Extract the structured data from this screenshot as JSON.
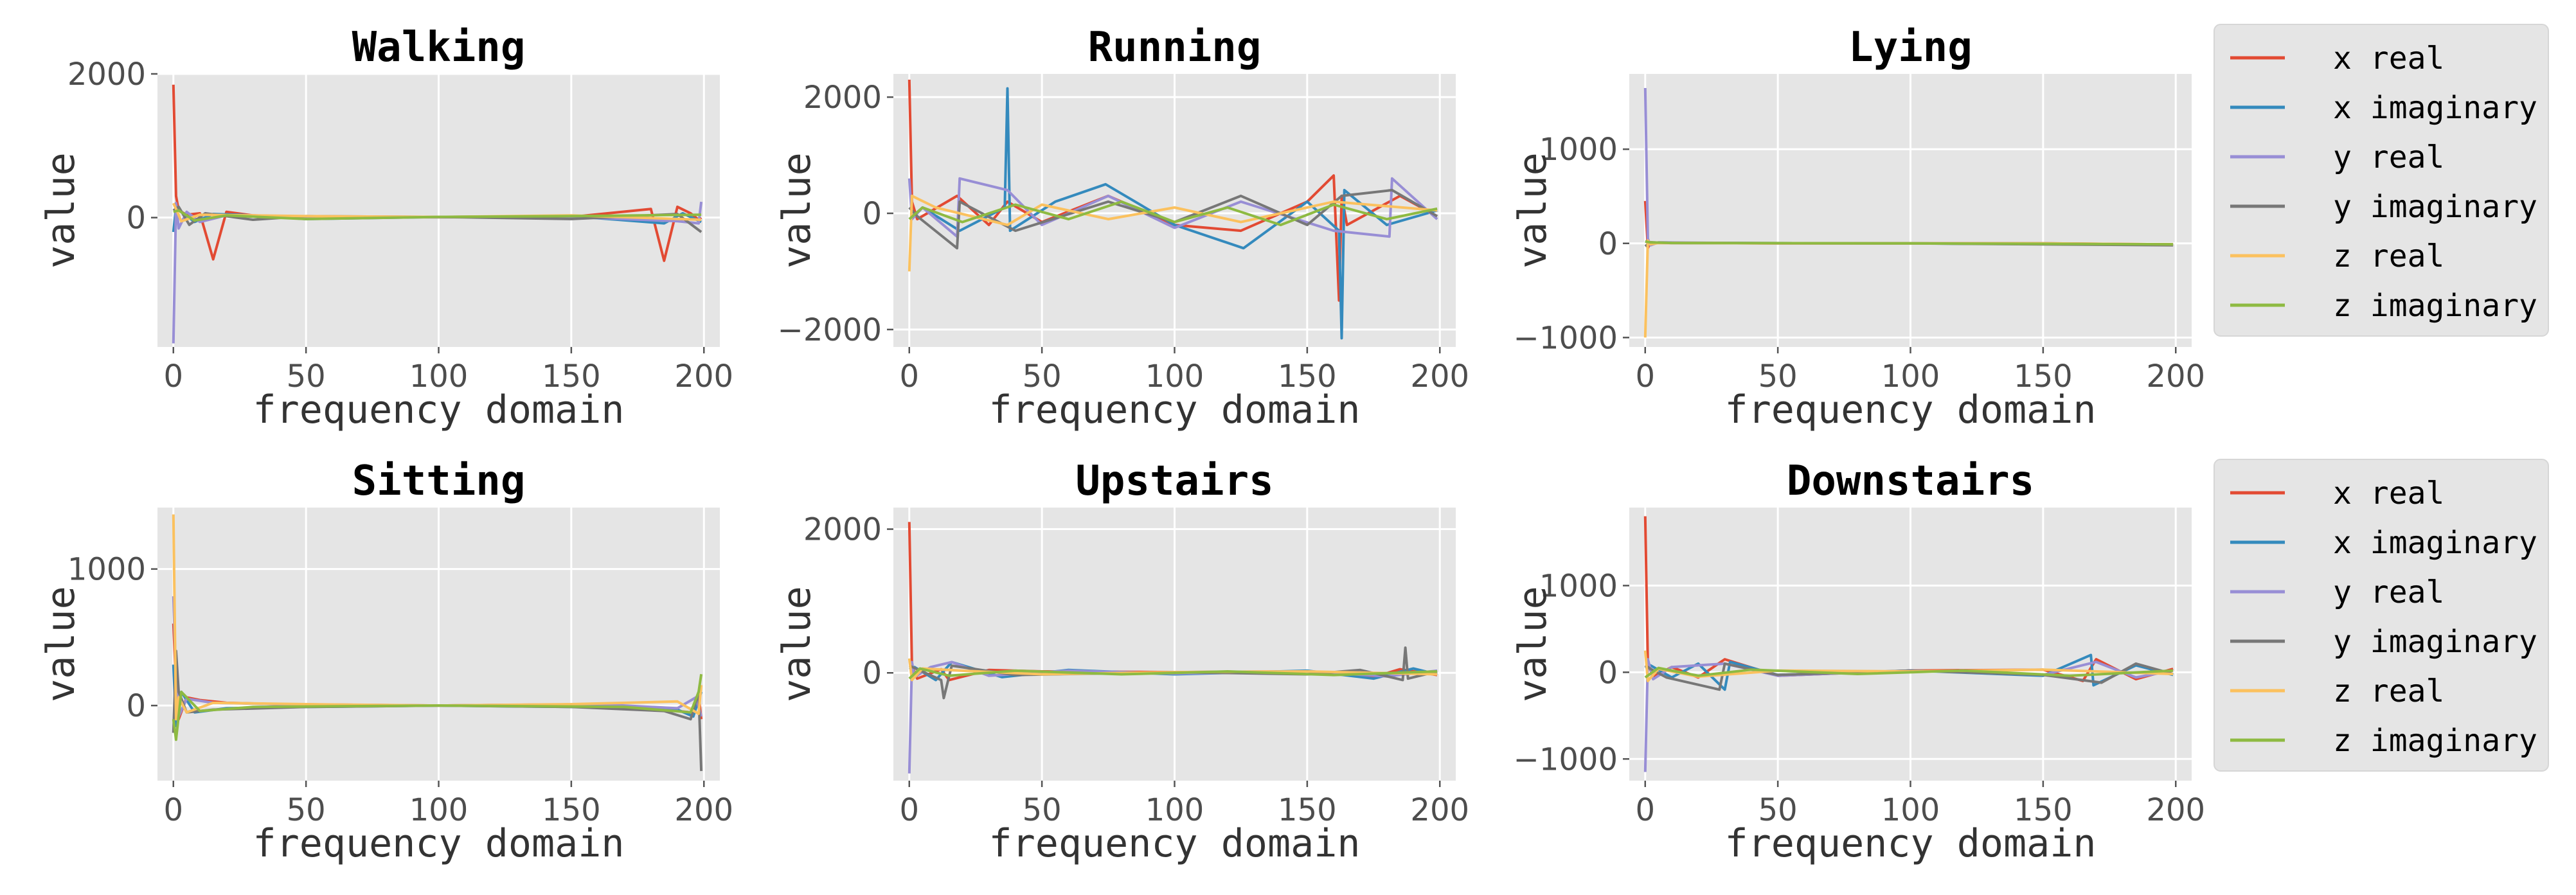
{
  "series_colors": {
    "x real": "#E24A33",
    "x imaginary": "#348ABD",
    "y real": "#988ED5",
    "y imaginary": "#777777",
    "z real": "#FBC15E",
    "z imaginary": "#8EBA42"
  },
  "chart_data": [
    {
      "type": "line",
      "title": "Walking",
      "xlabel": "frequency domain",
      "ylabel": "value",
      "xlim": [
        -6,
        206
      ],
      "ylim": [
        -1800,
        2000
      ],
      "xticks": [
        0,
        50,
        100,
        150,
        200
      ],
      "yticks": [
        0,
        2000
      ],
      "series": [
        {
          "name": "x real",
          "x": [
            0,
            1,
            2,
            5,
            10,
            15,
            20,
            30,
            50,
            100,
            150,
            180,
            185,
            190,
            195,
            198,
            199
          ],
          "values": [
            1850,
            300,
            100,
            40,
            60,
            -580,
            80,
            30,
            10,
            5,
            10,
            120,
            -600,
            150,
            60,
            -30,
            0
          ]
        },
        {
          "name": "x imaginary",
          "x": [
            0,
            1,
            3,
            8,
            15,
            25,
            50,
            100,
            150,
            185,
            192,
            199
          ],
          "values": [
            -200,
            150,
            80,
            -60,
            50,
            40,
            -20,
            10,
            20,
            -80,
            60,
            -60
          ]
        },
        {
          "name": "y real",
          "x": [
            0,
            1,
            2,
            5,
            10,
            20,
            50,
            100,
            150,
            190,
            198,
            199
          ],
          "values": [
            -1750,
            200,
            -150,
            80,
            -60,
            30,
            10,
            5,
            10,
            -50,
            -80,
            220
          ]
        },
        {
          "name": "y imaginary",
          "x": [
            0,
            2,
            6,
            12,
            30,
            50,
            100,
            150,
            190,
            199
          ],
          "values": [
            100,
            150,
            -100,
            60,
            -30,
            20,
            10,
            -20,
            50,
            -200
          ]
        },
        {
          "name": "z real",
          "x": [
            0,
            1,
            3,
            10,
            50,
            100,
            150,
            199
          ],
          "values": [
            200,
            120,
            -50,
            40,
            20,
            10,
            30,
            -30
          ]
        },
        {
          "name": "z imaginary",
          "x": [
            0,
            2,
            8,
            20,
            50,
            100,
            150,
            199
          ],
          "values": [
            80,
            100,
            -40,
            30,
            -20,
            10,
            20,
            40
          ]
        }
      ]
    },
    {
      "type": "line",
      "title": "Running",
      "xlabel": "frequency domain",
      "ylabel": "value",
      "xlim": [
        -6,
        206
      ],
      "ylim": [
        -2300,
        2400
      ],
      "xticks": [
        0,
        50,
        100,
        150,
        200
      ],
      "yticks": [
        -2000,
        0,
        2000
      ],
      "series": [
        {
          "name": "x real",
          "x": [
            0,
            1,
            3,
            18,
            30,
            37,
            50,
            75,
            100,
            125,
            150,
            160,
            162,
            163,
            165,
            185,
            199
          ],
          "values": [
            2300,
            200,
            -100,
            300,
            -200,
            200,
            -150,
            300,
            -200,
            -300,
            200,
            650,
            -1500,
            300,
            -200,
            300,
            -50
          ]
        },
        {
          "name": "x imaginary",
          "x": [
            0,
            5,
            19,
            36,
            37,
            38,
            55,
            74,
            100,
            126,
            150,
            162,
            163,
            164,
            180,
            199
          ],
          "values": [
            -100,
            100,
            -300,
            100,
            2150,
            -300,
            200,
            500,
            -200,
            -600,
            200,
            -300,
            -2150,
            400,
            -200,
            50
          ]
        },
        {
          "name": "y real",
          "x": [
            0,
            1,
            5,
            18,
            19,
            37,
            50,
            75,
            100,
            125,
            160,
            181,
            182,
            199
          ],
          "values": [
            600,
            -100,
            100,
            -400,
            600,
            400,
            -200,
            300,
            -250,
            200,
            -300,
            -400,
            600,
            -100
          ]
        },
        {
          "name": "y imaginary",
          "x": [
            0,
            3,
            18,
            19,
            40,
            75,
            100,
            125,
            150,
            163,
            182,
            199
          ],
          "values": [
            100,
            -50,
            -600,
            200,
            -300,
            200,
            -150,
            300,
            -200,
            300,
            400,
            -50
          ]
        },
        {
          "name": "z real",
          "x": [
            0,
            1,
            10,
            37,
            50,
            75,
            100,
            125,
            160,
            199
          ],
          "values": [
            -1000,
            300,
            100,
            -200,
            150,
            -100,
            100,
            -150,
            200,
            50
          ]
        },
        {
          "name": "z imaginary",
          "x": [
            0,
            5,
            20,
            40,
            60,
            80,
            100,
            120,
            140,
            160,
            180,
            199
          ],
          "values": [
            -100,
            100,
            -150,
            150,
            -100,
            200,
            -150,
            100,
            -200,
            150,
            -100,
            80
          ]
        }
      ]
    },
    {
      "type": "line",
      "title": "Lying",
      "xlabel": "frequency domain",
      "ylabel": "value",
      "xlim": [
        -6,
        206
      ],
      "ylim": [
        -1100,
        1800
      ],
      "xticks": [
        0,
        50,
        100,
        150,
        200
      ],
      "yticks": [
        -1000,
        0,
        1000
      ],
      "series": [
        {
          "name": "x real",
          "x": [
            0,
            1,
            2,
            5,
            50,
            100,
            150,
            199
          ],
          "values": [
            450,
            -50,
            10,
            5,
            0,
            0,
            0,
            -10
          ]
        },
        {
          "name": "x imaginary",
          "x": [
            0,
            2,
            10,
            100,
            199
          ],
          "values": [
            20,
            10,
            5,
            0,
            -15
          ]
        },
        {
          "name": "y real",
          "x": [
            0,
            1,
            2,
            5,
            50,
            100,
            150,
            199
          ],
          "values": [
            1650,
            50,
            -20,
            10,
            0,
            0,
            0,
            -15
          ]
        },
        {
          "name": "y imaginary",
          "x": [
            0,
            2,
            10,
            100,
            199
          ],
          "values": [
            -30,
            10,
            5,
            0,
            -20
          ]
        },
        {
          "name": "z real",
          "x": [
            0,
            1,
            2,
            5,
            50,
            100,
            150,
            199
          ],
          "values": [
            -1000,
            30,
            -10,
            5,
            0,
            0,
            0,
            -10
          ]
        },
        {
          "name": "z imaginary",
          "x": [
            0,
            2,
            10,
            100,
            199
          ],
          "values": [
            20,
            10,
            5,
            0,
            -10
          ]
        }
      ]
    },
    {
      "type": "line",
      "title": "Sitting",
      "xlabel": "frequency domain",
      "ylabel": "value",
      "xlim": [
        -6,
        206
      ],
      "ylim": [
        -550,
        1450
      ],
      "xticks": [
        0,
        50,
        100,
        150,
        200
      ],
      "yticks": [
        0,
        1000
      ],
      "series": [
        {
          "name": "x real",
          "x": [
            0,
            1,
            2,
            5,
            10,
            20,
            40,
            100,
            160,
            185,
            195,
            198,
            199
          ],
          "values": [
            600,
            150,
            -100,
            60,
            40,
            20,
            10,
            0,
            10,
            -30,
            -50,
            80,
            -100
          ]
        },
        {
          "name": "x imaginary",
          "x": [
            0,
            1,
            3,
            8,
            20,
            50,
            100,
            150,
            190,
            196,
            199
          ],
          "values": [
            300,
            -150,
            100,
            -50,
            -20,
            -10,
            0,
            -10,
            -30,
            -80,
            100
          ]
        },
        {
          "name": "y real",
          "x": [
            0,
            1,
            2,
            5,
            15,
            40,
            100,
            160,
            190,
            197,
            199
          ],
          "values": [
            800,
            200,
            -80,
            50,
            20,
            10,
            0,
            10,
            -20,
            60,
            -80
          ]
        },
        {
          "name": "y imaginary",
          "x": [
            0,
            1,
            2,
            5,
            15,
            50,
            100,
            150,
            185,
            195,
            198,
            199
          ],
          "values": [
            -200,
            400,
            100,
            -50,
            -30,
            -10,
            0,
            -10,
            -40,
            -100,
            100,
            -480
          ]
        },
        {
          "name": "z real",
          "x": [
            0,
            1,
            2,
            5,
            15,
            50,
            100,
            150,
            190,
            198,
            199
          ],
          "values": [
            1400,
            -100,
            60,
            -50,
            20,
            10,
            0,
            10,
            30,
            -60,
            150
          ]
        },
        {
          "name": "z imaginary",
          "x": [
            0,
            1,
            3,
            10,
            30,
            100,
            170,
            195,
            198,
            199
          ],
          "values": [
            -100,
            -250,
            100,
            -40,
            -10,
            0,
            -10,
            -50,
            100,
            230
          ]
        }
      ]
    },
    {
      "type": "line",
      "title": "Upstairs",
      "xlabel": "frequency domain",
      "ylabel": "value",
      "xlim": [
        -6,
        206
      ],
      "ylim": [
        -1500,
        2300
      ],
      "xticks": [
        0,
        50,
        100,
        150,
        200
      ],
      "yticks": [
        0,
        2000
      ],
      "series": [
        {
          "name": "x real",
          "x": [
            0,
            1,
            3,
            12,
            15,
            30,
            50,
            100,
            150,
            175,
            185,
            199
          ],
          "values": [
            2100,
            100,
            -80,
            50,
            -100,
            40,
            20,
            10,
            20,
            -60,
            50,
            -30
          ]
        },
        {
          "name": "x imaginary",
          "x": [
            0,
            2,
            10,
            16,
            35,
            60,
            100,
            150,
            175,
            190,
            199
          ],
          "values": [
            50,
            80,
            -100,
            150,
            -60,
            40,
            -20,
            30,
            -80,
            60,
            -20
          ]
        },
        {
          "name": "y real",
          "x": [
            0,
            1,
            2,
            8,
            16,
            30,
            60,
            100,
            150,
            180,
            199
          ],
          "values": [
            -1400,
            150,
            -60,
            80,
            150,
            -40,
            30,
            -10,
            20,
            -50,
            30
          ]
        },
        {
          "name": "y imaginary",
          "x": [
            0,
            3,
            12,
            13,
            16,
            40,
            100,
            150,
            170,
            186,
            187,
            188,
            199
          ],
          "values": [
            100,
            50,
            -100,
            -350,
            100,
            -30,
            10,
            -20,
            40,
            -100,
            350,
            -80,
            20
          ]
        },
        {
          "name": "z real",
          "x": [
            0,
            1,
            5,
            20,
            50,
            100,
            150,
            199
          ],
          "values": [
            200,
            -100,
            60,
            30,
            -20,
            10,
            20,
            -20
          ]
        },
        {
          "name": "z imaginary",
          "x": [
            0,
            4,
            15,
            40,
            80,
            120,
            160,
            199
          ],
          "values": [
            -80,
            60,
            -40,
            30,
            -20,
            20,
            -30,
            20
          ]
        }
      ]
    },
    {
      "type": "line",
      "title": "Downstairs",
      "xlabel": "frequency domain",
      "ylabel": "value",
      "xlim": [
        -6,
        206
      ],
      "ylim": [
        -1250,
        1900
      ],
      "xticks": [
        0,
        50,
        100,
        150,
        200
      ],
      "yticks": [
        -1000,
        0,
        1000
      ],
      "series": [
        {
          "name": "x real",
          "x": [
            0,
            1,
            3,
            10,
            20,
            30,
            50,
            100,
            150,
            165,
            170,
            185,
            199
          ],
          "values": [
            1800,
            100,
            -50,
            60,
            -60,
            150,
            -40,
            20,
            30,
            -100,
            150,
            -80,
            40
          ]
        },
        {
          "name": "x imaginary",
          "x": [
            0,
            2,
            10,
            20,
            30,
            32,
            50,
            100,
            150,
            168,
            169,
            185,
            199
          ],
          "values": [
            50,
            80,
            -60,
            100,
            -200,
            120,
            -30,
            20,
            -40,
            200,
            -150,
            80,
            -30
          ]
        },
        {
          "name": "y real",
          "x": [
            0,
            1,
            3,
            10,
            30,
            50,
            100,
            150,
            170,
            185,
            199
          ],
          "values": [
            -1150,
            150,
            -80,
            60,
            100,
            -40,
            20,
            -30,
            120,
            -60,
            20
          ]
        },
        {
          "name": "y imaginary",
          "x": [
            0,
            2,
            8,
            28,
            30,
            50,
            100,
            150,
            172,
            185,
            199
          ],
          "values": [
            80,
            40,
            -60,
            -200,
            100,
            -30,
            20,
            -30,
            -120,
            100,
            -20
          ]
        },
        {
          "name": "z real",
          "x": [
            0,
            1,
            5,
            20,
            50,
            100,
            150,
            199
          ],
          "values": [
            250,
            -100,
            40,
            -50,
            20,
            10,
            30,
            -20
          ]
        },
        {
          "name": "z imaginary",
          "x": [
            0,
            5,
            20,
            40,
            80,
            120,
            160,
            199
          ],
          "values": [
            -60,
            50,
            -40,
            30,
            -20,
            20,
            -40,
            20
          ]
        }
      ]
    }
  ],
  "legends": [
    {
      "entries": [
        "x real",
        "x imaginary",
        "y real",
        "y imaginary",
        "z real",
        "z imaginary"
      ]
    },
    {
      "entries": [
        "x real",
        "x imaginary",
        "y real",
        "y imaginary",
        "z real",
        "z imaginary"
      ]
    }
  ]
}
